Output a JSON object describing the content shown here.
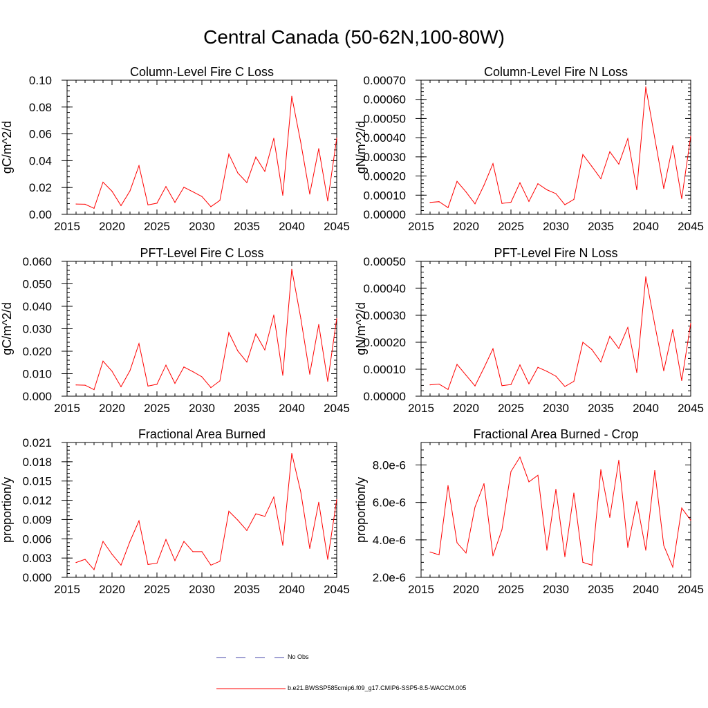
{
  "figure": {
    "title": "Central Canada (50-62N,100-80W)",
    "line_color": "#ff0000",
    "obs_color": "#4444aa"
  },
  "legend": {
    "obs_label": "No Obs",
    "model_label": "b.e21.BWSSP585cmip6.f09_g17.CMIP6-SSP5-8.5-WACCM.005"
  },
  "chart_data": [
    {
      "type": "line",
      "title": "Column-Level Fire C Loss",
      "xlabel": "",
      "ylabel": "gC/m^2/d",
      "xlim": [
        2015,
        2045
      ],
      "ylim": [
        0,
        0.1
      ],
      "xticks": [
        2015,
        2020,
        2025,
        2030,
        2035,
        2040,
        2045
      ],
      "yticks": [
        0,
        0.02,
        0.04,
        0.06,
        0.08,
        0.1
      ],
      "ytick_labels": [
        "0.00",
        "0.02",
        "0.04",
        "0.06",
        "0.08",
        "0.10"
      ],
      "series": [
        {
          "name": "b.e21.BWSSP585cmip6.f09_g17.CMIP6-SSP5-8.5-WACCM.005",
          "x": [
            2016,
            2017,
            2018,
            2019,
            2020,
            2021,
            2022,
            2023,
            2024,
            2025,
            2026,
            2027,
            2028,
            2029,
            2030,
            2031,
            2032,
            2033,
            2034,
            2035,
            2036,
            2037,
            2038,
            2039,
            2040,
            2041,
            2042,
            2043,
            2044,
            2045
          ],
          "y": [
            0.0077,
            0.0075,
            0.0045,
            0.024,
            0.0172,
            0.0065,
            0.0175,
            0.0363,
            0.007,
            0.0083,
            0.0207,
            0.0089,
            0.0202,
            0.0168,
            0.0133,
            0.0057,
            0.0104,
            0.0449,
            0.0308,
            0.0237,
            0.0427,
            0.032,
            0.0567,
            0.0142,
            0.088,
            0.0536,
            0.0151,
            0.049,
            0.01,
            0.0568
          ]
        }
      ]
    },
    {
      "type": "line",
      "title": "Column-Level Fire N Loss",
      "xlabel": "",
      "ylabel": "gN/m^2/d",
      "xlim": [
        2015,
        2045
      ],
      "ylim": [
        0,
        0.0007
      ],
      "xticks": [
        2015,
        2020,
        2025,
        2030,
        2035,
        2040,
        2045
      ],
      "yticks": [
        0,
        0.0001,
        0.0002,
        0.0003,
        0.0004,
        0.0005,
        0.0006,
        0.0007
      ],
      "ytick_labels": [
        "0.00000",
        "0.00010",
        "0.00020",
        "0.00030",
        "0.00040",
        "0.00050",
        "0.00060",
        "0.00070"
      ],
      "series": [
        {
          "name": "b.e21.BWSSP585cmip6.f09_g17.CMIP6-SSP5-8.5-WACCM.005",
          "x": [
            2016,
            2017,
            2018,
            2019,
            2020,
            2021,
            2022,
            2023,
            2024,
            2025,
            2026,
            2027,
            2028,
            2029,
            2030,
            2031,
            2032,
            2033,
            2034,
            2035,
            2036,
            2037,
            2038,
            2039,
            2040,
            2041,
            2042,
            2043,
            2044,
            2045
          ],
          "y": [
            6.2e-05,
            6.6e-05,
            3.5e-05,
            0.000172,
            0.000117,
            5.5e-05,
            0.000152,
            0.000265,
            5.7e-05,
            6.3e-05,
            0.000165,
            6.7e-05,
            0.00016,
            0.000128,
            0.000108,
            5e-05,
            7.8e-05,
            0.000312,
            0.00025,
            0.000186,
            0.000327,
            0.000262,
            0.000395,
            0.000128,
            0.000665,
            0.000398,
            0.000135,
            0.000358,
            8.2e-05,
            0.000408
          ]
        }
      ]
    },
    {
      "type": "line",
      "title": "PFT-Level Fire C Loss",
      "xlabel": "",
      "ylabel": "gC/m^2/d",
      "xlim": [
        2015,
        2045
      ],
      "ylim": [
        0,
        0.06
      ],
      "xticks": [
        2015,
        2020,
        2025,
        2030,
        2035,
        2040,
        2045
      ],
      "yticks": [
        0,
        0.01,
        0.02,
        0.03,
        0.04,
        0.05,
        0.06
      ],
      "ytick_labels": [
        "0.000",
        "0.010",
        "0.020",
        "0.030",
        "0.040",
        "0.050",
        "0.060"
      ],
      "series": [
        {
          "name": "b.e21.BWSSP585cmip6.f09_g17.CMIP6-SSP5-8.5-WACCM.005",
          "x": [
            2016,
            2017,
            2018,
            2019,
            2020,
            2021,
            2022,
            2023,
            2024,
            2025,
            2026,
            2027,
            2028,
            2029,
            2030,
            2031,
            2032,
            2033,
            2034,
            2035,
            2036,
            2037,
            2038,
            2039,
            2040,
            2041,
            2042,
            2043,
            2044,
            2045
          ],
          "y": [
            0.005,
            0.0049,
            0.0029,
            0.0156,
            0.0111,
            0.0042,
            0.0114,
            0.0234,
            0.0045,
            0.0053,
            0.0138,
            0.0057,
            0.013,
            0.0109,
            0.0086,
            0.0038,
            0.0068,
            0.0283,
            0.0201,
            0.0152,
            0.0277,
            0.0206,
            0.0361,
            0.0093,
            0.0565,
            0.0347,
            0.0098,
            0.0319,
            0.0066,
            0.0346
          ]
        }
      ]
    },
    {
      "type": "line",
      "title": "PFT-Level Fire N Loss",
      "xlabel": "",
      "ylabel": "gN/m^2/d",
      "xlim": [
        2015,
        2045
      ],
      "ylim": [
        0,
        0.0005
      ],
      "xticks": [
        2015,
        2020,
        2025,
        2030,
        2035,
        2040,
        2045
      ],
      "yticks": [
        0,
        0.0001,
        0.0002,
        0.0003,
        0.0004,
        0.0005
      ],
      "ytick_labels": [
        "0.00000",
        "0.00010",
        "0.00020",
        "0.00030",
        "0.00040",
        "0.00050"
      ],
      "series": [
        {
          "name": "b.e21.BWSSP585cmip6.f09_g17.CMIP6-SSP5-8.5-WACCM.005",
          "x": [
            2016,
            2017,
            2018,
            2019,
            2020,
            2021,
            2022,
            2023,
            2024,
            2025,
            2026,
            2027,
            2028,
            2029,
            2030,
            2031,
            2032,
            2033,
            2034,
            2035,
            2036,
            2037,
            2038,
            2039,
            2040,
            2041,
            2042,
            2043,
            2044,
            2045
          ],
          "y": [
            4.2e-05,
            4.5e-05,
            2.5e-05,
            0.000118,
            7.8e-05,
            3.8e-05,
            0.000105,
            0.000176,
            3.9e-05,
            4.3e-05,
            0.000116,
            4.6e-05,
            0.000107,
            9.2e-05,
            7.4e-05,
            3.6e-05,
            5.5e-05,
            0.0002,
            0.000173,
            0.000127,
            0.000222,
            0.000177,
            0.000255,
            8.8e-05,
            0.000443,
            0.000266,
            9.4e-05,
            0.000247,
            5.8e-05,
            0.00027
          ]
        }
      ]
    },
    {
      "type": "line",
      "title": "Fractional Area Burned",
      "xlabel": "",
      "ylabel": "proportion/y",
      "xlim": [
        2015,
        2045
      ],
      "ylim": [
        0,
        0.021
      ],
      "xticks": [
        2015,
        2020,
        2025,
        2030,
        2035,
        2040,
        2045
      ],
      "yticks": [
        0,
        0.003,
        0.006,
        0.009,
        0.012,
        0.015,
        0.018,
        0.021
      ],
      "ytick_labels": [
        "0.000",
        "0.003",
        "0.006",
        "0.009",
        "0.012",
        "0.015",
        "0.018",
        "0.021"
      ],
      "series": [
        {
          "name": "b.e21.BWSSP585cmip6.f09_g17.CMIP6-SSP5-8.5-WACCM.005",
          "x": [
            2016,
            2017,
            2018,
            2019,
            2020,
            2021,
            2022,
            2023,
            2024,
            2025,
            2026,
            2027,
            2028,
            2029,
            2030,
            2031,
            2032,
            2033,
            2034,
            2035,
            2036,
            2037,
            2038,
            2039,
            2040,
            2041,
            2042,
            2043,
            2044,
            2045
          ],
          "y": [
            0.0023,
            0.0028,
            0.0012,
            0.0056,
            0.0036,
            0.0019,
            0.0056,
            0.0088,
            0.002,
            0.0022,
            0.0059,
            0.0026,
            0.0056,
            0.004,
            0.004,
            0.0019,
            0.0025,
            0.0103,
            0.0089,
            0.0073,
            0.0099,
            0.0095,
            0.0125,
            0.005,
            0.0193,
            0.0133,
            0.0045,
            0.0117,
            0.0028,
            0.0121
          ]
        }
      ]
    },
    {
      "type": "line",
      "title": "Fractional Area Burned - Crop",
      "xlabel": "",
      "ylabel": "proportion/y",
      "xlim": [
        2015,
        2045
      ],
      "ylim": [
        2e-06,
        9.2e-06
      ],
      "xticks": [
        2015,
        2020,
        2025,
        2030,
        2035,
        2040,
        2045
      ],
      "yticks": [
        2e-06,
        4e-06,
        6e-06,
        8e-06
      ],
      "ytick_labels": [
        "2.0e-6",
        "4.0e-6",
        "6.0e-6",
        "8.0e-6"
      ],
      "series": [
        {
          "name": "b.e21.BWSSP585cmip6.f09_g17.CMIP6-SSP5-8.5-WACCM.005",
          "x": [
            2016,
            2017,
            2018,
            2019,
            2020,
            2021,
            2022,
            2023,
            2024,
            2025,
            2026,
            2027,
            2028,
            2029,
            2030,
            2031,
            2032,
            2033,
            2034,
            2035,
            2036,
            2037,
            2038,
            2039,
            2040,
            2041,
            2042,
            2043,
            2044,
            2045
          ],
          "y": [
            3.35e-06,
            3.2e-06,
            6.9e-06,
            3.85e-06,
            3.3e-06,
            5.75e-06,
            7e-06,
            3.15e-06,
            4.55e-06,
            7.65e-06,
            8.42e-06,
            7.1e-06,
            7.45e-06,
            3.45e-06,
            6.7e-06,
            3.1e-06,
            6.5e-06,
            2.8e-06,
            2.65e-06,
            7.75e-06,
            5.2e-06,
            8.25e-06,
            3.6e-06,
            6.05e-06,
            3.45e-06,
            7.7e-06,
            3.7e-06,
            2.55e-06,
            5.7e-06,
            5.05e-06
          ]
        }
      ]
    }
  ]
}
